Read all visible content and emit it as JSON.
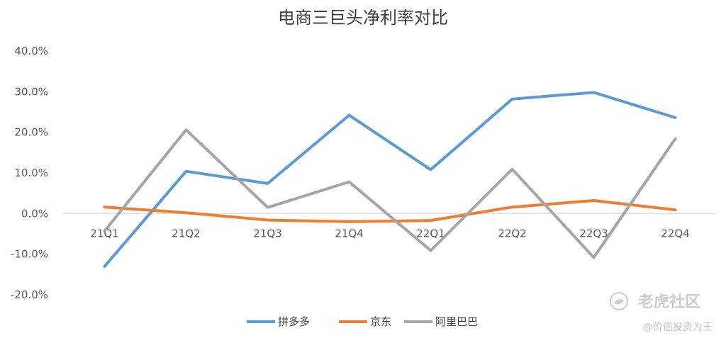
{
  "chart_data": {
    "type": "line",
    "title": "电商三巨头净利率对比",
    "categories": [
      "21Q1",
      "21Q2",
      "21Q3",
      "21Q4",
      "22Q1",
      "22Q2",
      "22Q3",
      "22Q4"
    ],
    "y_tick_labels": [
      "40.0%",
      "30.0%",
      "20.0%",
      "10.0%",
      "0.0%",
      "-10.0%",
      "-20.0%"
    ],
    "ylim": [
      -20,
      40
    ],
    "y_unit": "%",
    "grid": false,
    "legend_position": "bottom",
    "series": [
      {
        "name": "拼多多",
        "color": "#5b9bd5",
        "values": [
          -13.0,
          10.4,
          7.4,
          24.2,
          10.8,
          28.2,
          29.8,
          23.6
        ]
      },
      {
        "name": "京东",
        "color": "#ed7d31",
        "values": [
          1.6,
          0.2,
          -1.6,
          -2.0,
          -1.7,
          1.6,
          3.2,
          0.9
        ]
      },
      {
        "name": "阿里巴巴",
        "color": "#a5a5a5",
        "values": [
          -4.3,
          20.6,
          1.5,
          7.8,
          -9.1,
          10.9,
          -10.8,
          18.4
        ]
      }
    ]
  },
  "watermark": {
    "brand": "老虎社区",
    "author": "@价值投资为王",
    "icon": "tiger-community-logo-icon"
  }
}
